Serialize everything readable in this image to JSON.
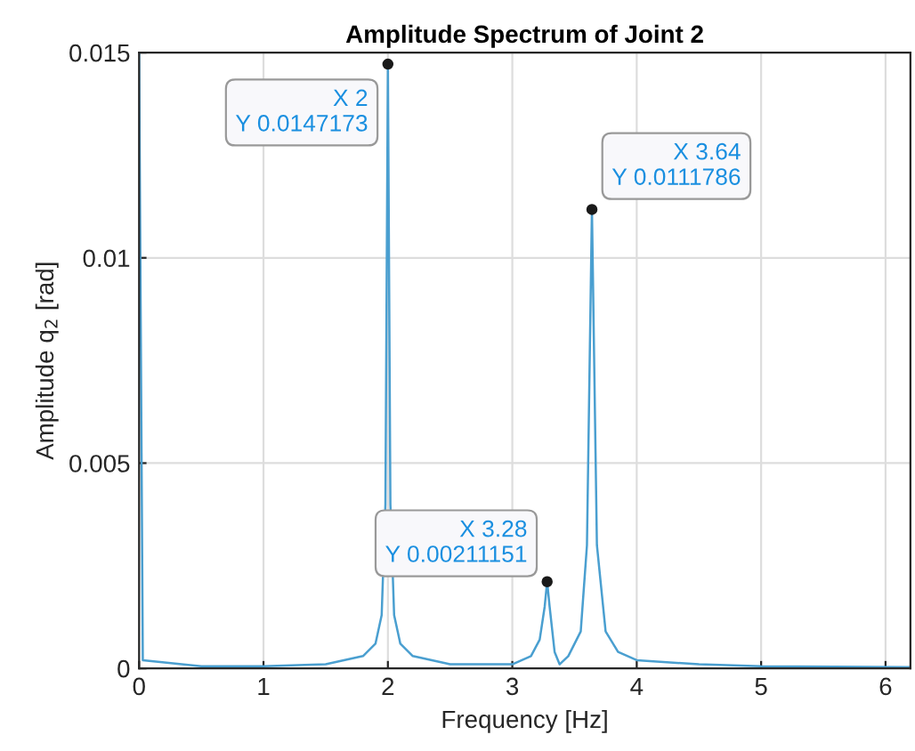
{
  "chart_data": {
    "type": "line",
    "title": "Amplitude Spectrum of Joint 2",
    "xlabel": "Frequency [Hz]",
    "ylabel": "Amplitude q$_{2}$ [rad]",
    "x": [
      0,
      0.03,
      0.5,
      1,
      1.5,
      1.8,
      1.9,
      1.95,
      1.98,
      2,
      2.02,
      2.05,
      2.1,
      2.2,
      2.5,
      3.0,
      3.15,
      3.22,
      3.26,
      3.28,
      3.3,
      3.34,
      3.38,
      3.45,
      3.55,
      3.6,
      3.64,
      3.68,
      3.75,
      3.85,
      4,
      4.5,
      5,
      6.2
    ],
    "series": [
      {
        "color": "#4a9fd0",
        "values": [
          0.015,
          0.0002,
          5e-05,
          5e-05,
          0.0001,
          0.0003,
          0.0006,
          0.0013,
          0.004,
          0.0147173,
          0.004,
          0.0013,
          0.0006,
          0.0003,
          0.0001,
          0.0001,
          0.0003,
          0.0007,
          0.0015,
          0.00211151,
          0.0015,
          0.0004,
          0.0001,
          0.0003,
          0.0009,
          0.003,
          0.0111786,
          0.003,
          0.0009,
          0.0004,
          0.0002,
          0.0001,
          5e-05,
          3e-05
        ]
      }
    ],
    "xlim": [
      0,
      6.2
    ],
    "xticks": [
      0,
      1,
      2,
      3,
      4,
      5,
      6
    ],
    "ylim": [
      0,
      0.015
    ],
    "yticks": [
      0,
      0.005,
      0.01,
      0.015
    ],
    "grid": true,
    "marker": "none",
    "line_style": "solid",
    "annotations": [
      {
        "text": "X 2\nY 0.0147173",
        "x": 2,
        "y": 0.0147173
      },
      {
        "text": "X 3.64\nY 0.0111786",
        "x": 3.64,
        "y": 0.0111786
      },
      {
        "text": "X 3.28\nY 0.00211151",
        "x": 3.28,
        "y": 0.00211151
      }
    ]
  }
}
